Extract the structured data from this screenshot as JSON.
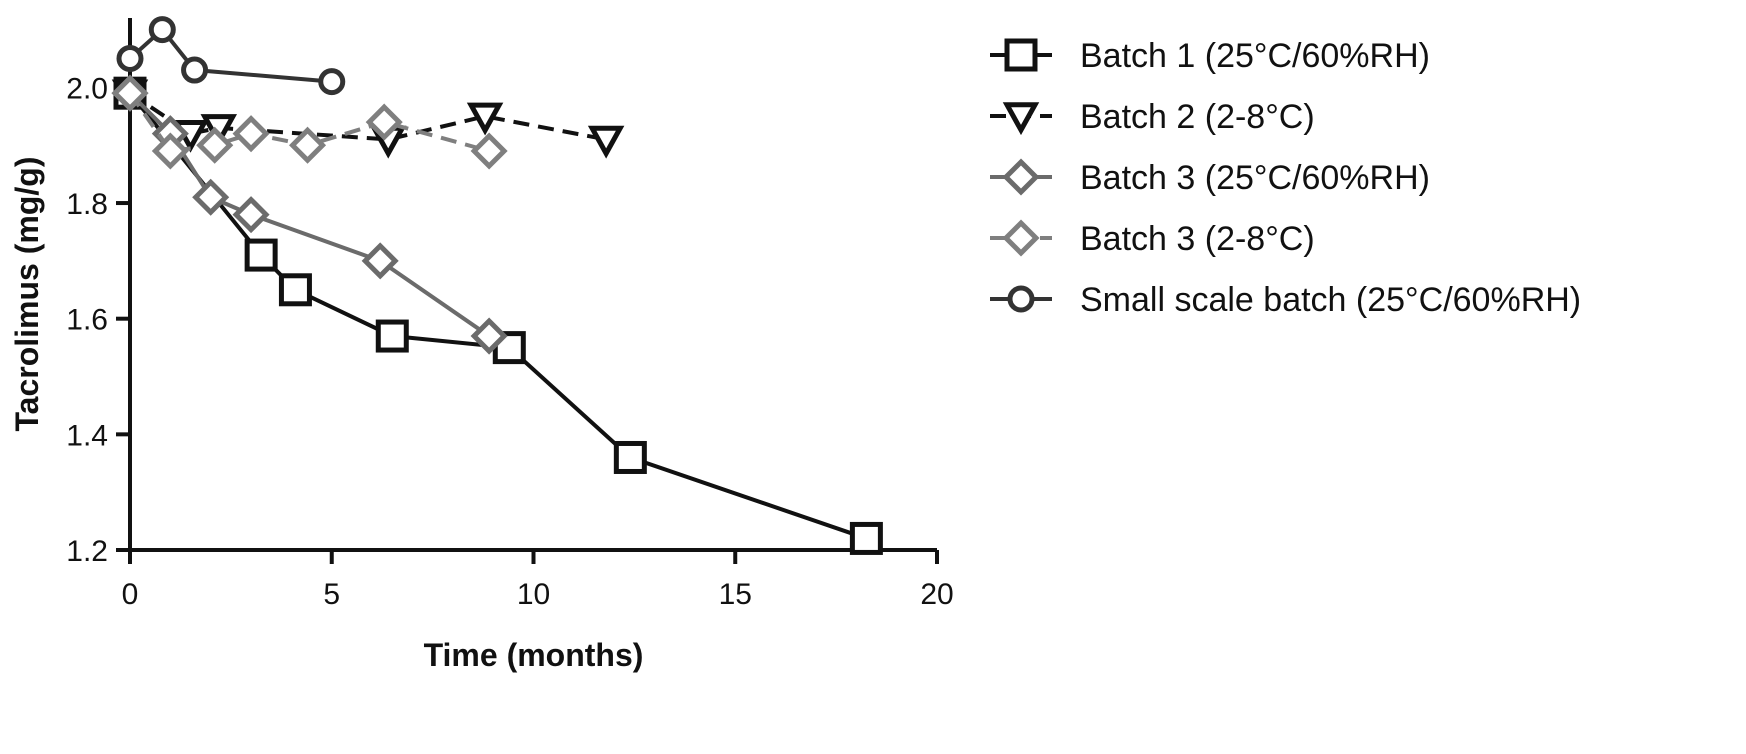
{
  "chart_data": {
    "type": "line",
    "title": "",
    "xlabel": "Time (months)",
    "ylabel": "Tacrolimus (mg/g)",
    "xlim": [
      0,
      20
    ],
    "ylim": [
      1.2,
      2.12
    ],
    "xticks": [
      0,
      5,
      10,
      15,
      20
    ],
    "xtick_labels": [
      "0",
      "5",
      "10",
      "15",
      "20"
    ],
    "yticks": [
      1.2,
      1.4,
      1.6,
      1.8,
      2.0
    ],
    "ytick_labels": [
      "1.2",
      "1.4",
      "1.6",
      "1.8",
      "2.0"
    ],
    "grid": false,
    "legend_position": "right",
    "series": [
      {
        "name": "Batch 1 (25°C/60%RH)",
        "marker": "square",
        "line_style": "solid",
        "color": "#111111",
        "x": [
          0,
          3.25,
          4.1,
          6.5,
          9.4,
          12.4,
          18.25
        ],
        "y": [
          1.99,
          1.71,
          1.65,
          1.57,
          1.55,
          1.36,
          1.22
        ]
      },
      {
        "name": "Batch 2 (2-8°C)",
        "marker": "triangle-down",
        "line_style": "dashed",
        "color": "#111111",
        "x": [
          0,
          1.5,
          2.2,
          6.4,
          8.8,
          11.8
        ],
        "y": [
          1.99,
          1.92,
          1.93,
          1.91,
          1.95,
          1.91
        ]
      },
      {
        "name": "Batch 3 (25°C/60%RH)",
        "marker": "diamond",
        "line_style": "solid",
        "color": "#6b6b6b",
        "x": [
          0,
          1.0,
          2.0,
          3.0,
          6.2,
          8.9
        ],
        "y": [
          1.99,
          1.92,
          1.81,
          1.78,
          1.7,
          1.57
        ]
      },
      {
        "name": "Batch 3 (2-8°C)",
        "marker": "diamond",
        "line_style": "dashed",
        "color": "#7f7f7f",
        "x": [
          0,
          1.0,
          2.1,
          3.0,
          4.4,
          6.3,
          8.9
        ],
        "y": [
          1.99,
          1.89,
          1.9,
          1.92,
          1.9,
          1.94,
          1.89
        ]
      },
      {
        "name": "Small scale batch (25°C/60%RH)",
        "marker": "circle",
        "line_style": "solid",
        "color": "#333333",
        "x": [
          0,
          0.8,
          1.6,
          5.0
        ],
        "y": [
          2.05,
          2.1,
          2.03,
          2.01
        ]
      }
    ]
  }
}
